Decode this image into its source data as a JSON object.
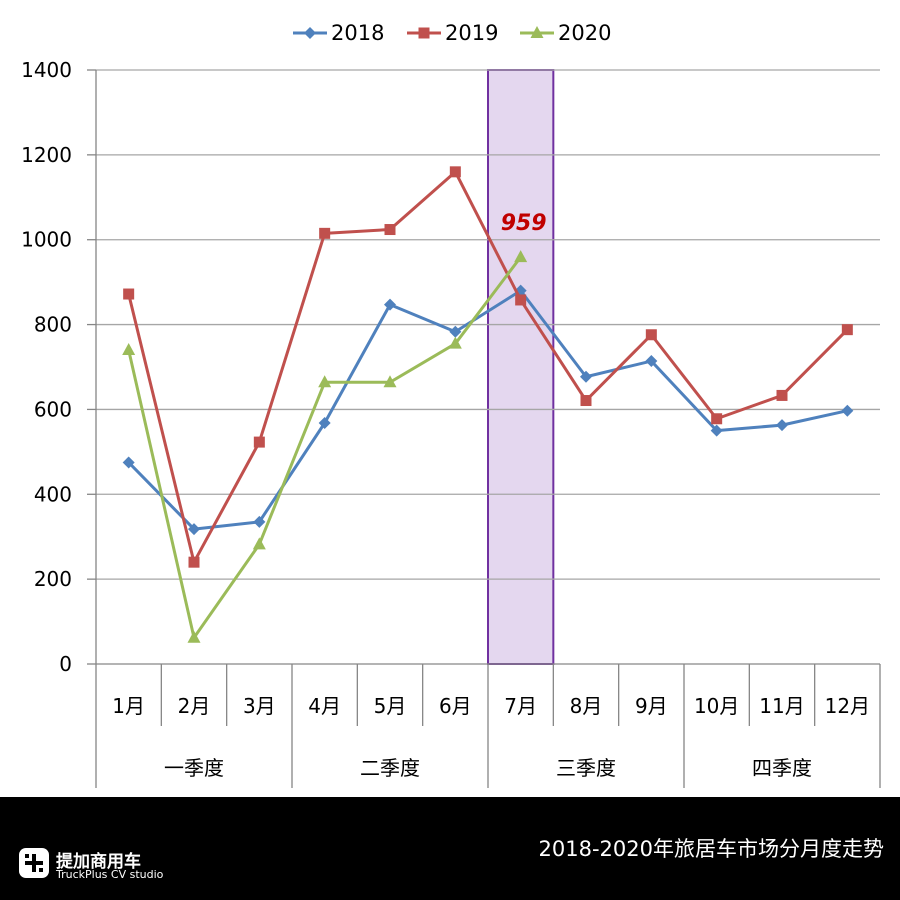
{
  "chart_data": {
    "type": "line",
    "categories": [
      "1月",
      "2月",
      "3月",
      "4月",
      "5月",
      "6月",
      "7月",
      "8月",
      "9月",
      "10月",
      "11月",
      "12月"
    ],
    "category_groups": [
      {
        "label": "一季度",
        "months": 3
      },
      {
        "label": "二季度",
        "months": 3
      },
      {
        "label": "三季度",
        "months": 3
      },
      {
        "label": "四季度",
        "months": 3
      }
    ],
    "series": [
      {
        "name": "2018",
        "color": "#4f81bd",
        "marker": "diamond",
        "values": [
          475,
          318,
          335,
          568,
          847,
          783,
          880,
          677,
          714,
          550,
          563,
          597
        ]
      },
      {
        "name": "2019",
        "color": "#c0504d",
        "marker": "square",
        "values": [
          872,
          240,
          523,
          1015,
          1024,
          1160,
          858,
          621,
          776,
          578,
          633,
          788
        ]
      },
      {
        "name": "2020",
        "color": "#9bbb59",
        "marker": "triangle",
        "values": [
          740,
          62,
          282,
          664,
          664,
          755,
          959,
          null,
          null,
          null,
          null,
          null
        ]
      }
    ],
    "y_ticks": [
      0,
      200,
      400,
      600,
      800,
      1000,
      1200,
      1400
    ],
    "ylim": [
      0,
      1400
    ],
    "highlight_category": "7月",
    "highlight_color": "#e4d7ef",
    "highlight_border": "#7030a0",
    "annotation": {
      "text": "959",
      "category": "7月",
      "color": "#c00000"
    },
    "legend_position": "top",
    "grid": "horizontal"
  },
  "footer": {
    "title": "2018-2020年旅居车市场分月度走势",
    "brand_name": "提加商用车",
    "brand_sub": "TruckPlus CV studio"
  }
}
